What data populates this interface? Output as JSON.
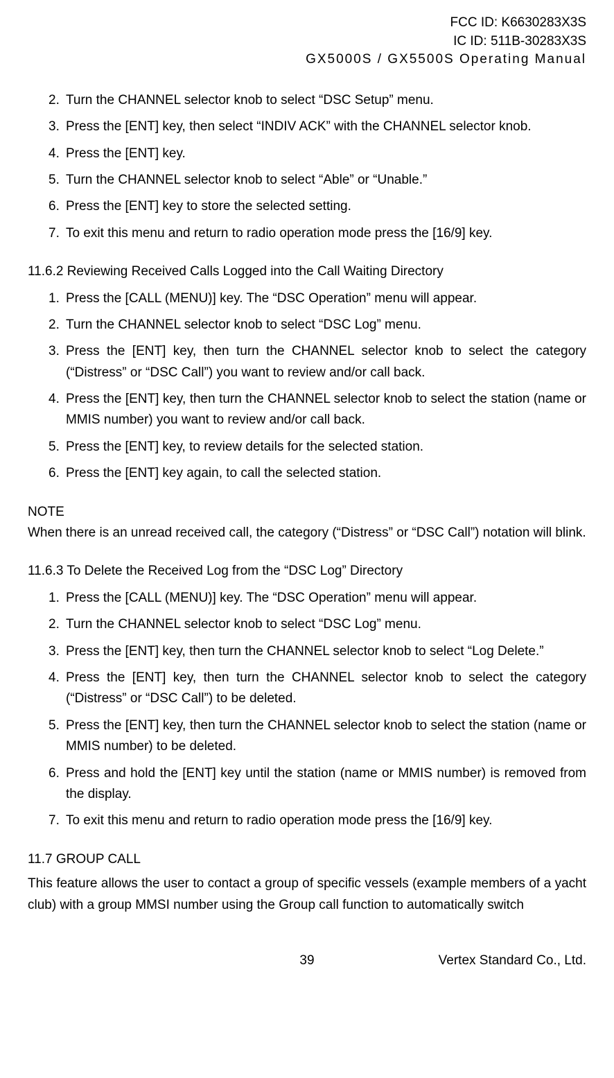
{
  "header": {
    "fcc_id": "FCC ID: K6630283X3S",
    "ic_id": "IC ID: 511B-30283X3S",
    "product_line": "GX5000S / GX5500S  Operating Manual"
  },
  "first_list": [
    {
      "num": "2.",
      "text": "Turn the CHANNEL selector knob to select “DSC Setup” menu."
    },
    {
      "num": "3.",
      "text": "Press the [ENT] key, then select “INDIV ACK” with the CHANNEL selector knob."
    },
    {
      "num": "4.",
      "text": "Press the [ENT] key."
    },
    {
      "num": "5.",
      "text": "Turn the CHANNEL selector knob to select “Able” or “Unable.”"
    },
    {
      "num": "6.",
      "text": "Press the [ENT] key to store the selected setting."
    },
    {
      "num": "7.",
      "text": "To exit this menu and return to radio operation mode press the [16/9] key."
    }
  ],
  "section_11_6_2": {
    "heading": "11.6.2 Reviewing Received Calls Logged into the Call Waiting Directory",
    "items": [
      {
        "num": "1.",
        "text": "Press the [CALL (MENU)] key. The “DSC Operation” menu will appear."
      },
      {
        "num": "2.",
        "text": "Turn the CHANNEL selector knob to select “DSC Log” menu."
      },
      {
        "num": "3.",
        "text": "Press the [ENT] key, then turn the CHANNEL selector knob to select the category (“Distress” or “DSC Call”) you want to review and/or call back."
      },
      {
        "num": "4.",
        "text": "Press the [ENT] key, then turn the CHANNEL selector knob to select the station (name or MMIS number) you want to review and/or call back."
      },
      {
        "num": "5.",
        "text": "Press the [ENT] key, to review details for the selected station."
      },
      {
        "num": "6.",
        "text": "Press the [ENT] key again, to call the selected station."
      }
    ]
  },
  "note": {
    "label": "NOTE",
    "text": "When there is an unread received call, the category (“Distress” or “DSC Call”) notation will blink."
  },
  "section_11_6_3": {
    "heading": "11.6.3 To Delete the Received Log from the “DSC Log” Directory",
    "items": [
      {
        "num": "1.",
        "text": "Press the [CALL (MENU)] key. The “DSC Operation” menu will appear."
      },
      {
        "num": "2.",
        "text": "Turn the CHANNEL selector knob to select “DSC Log” menu."
      },
      {
        "num": "3.",
        "text": "Press the [ENT] key, then turn the CHANNEL selector knob to select “Log Delete.”"
      },
      {
        "num": "4.",
        "text": "Press the [ENT] key, then turn the CHANNEL selector knob to select the category (“Distress” or “DSC Call”) to be deleted."
      },
      {
        "num": "5.",
        "text": "Press the [ENT] key, then turn the CHANNEL selector knob to select the station (name or MMIS number) to be deleted."
      },
      {
        "num": "6.",
        "text": "Press and hold the [ENT] key until the station (name or MMIS number) is removed from the display."
      },
      {
        "num": "7.",
        "text": "To exit this menu and return to radio operation mode press the [16/9] key."
      }
    ]
  },
  "section_11_7": {
    "heading": "11.7 GROUP CALL",
    "paragraph": "This feature allows the user to contact a group of specific vessels (example members of a yacht club) with a group MMSI number using the Group call function to automatically switch"
  },
  "footer": {
    "page_number": "39",
    "company": "Vertex Standard Co., Ltd."
  }
}
